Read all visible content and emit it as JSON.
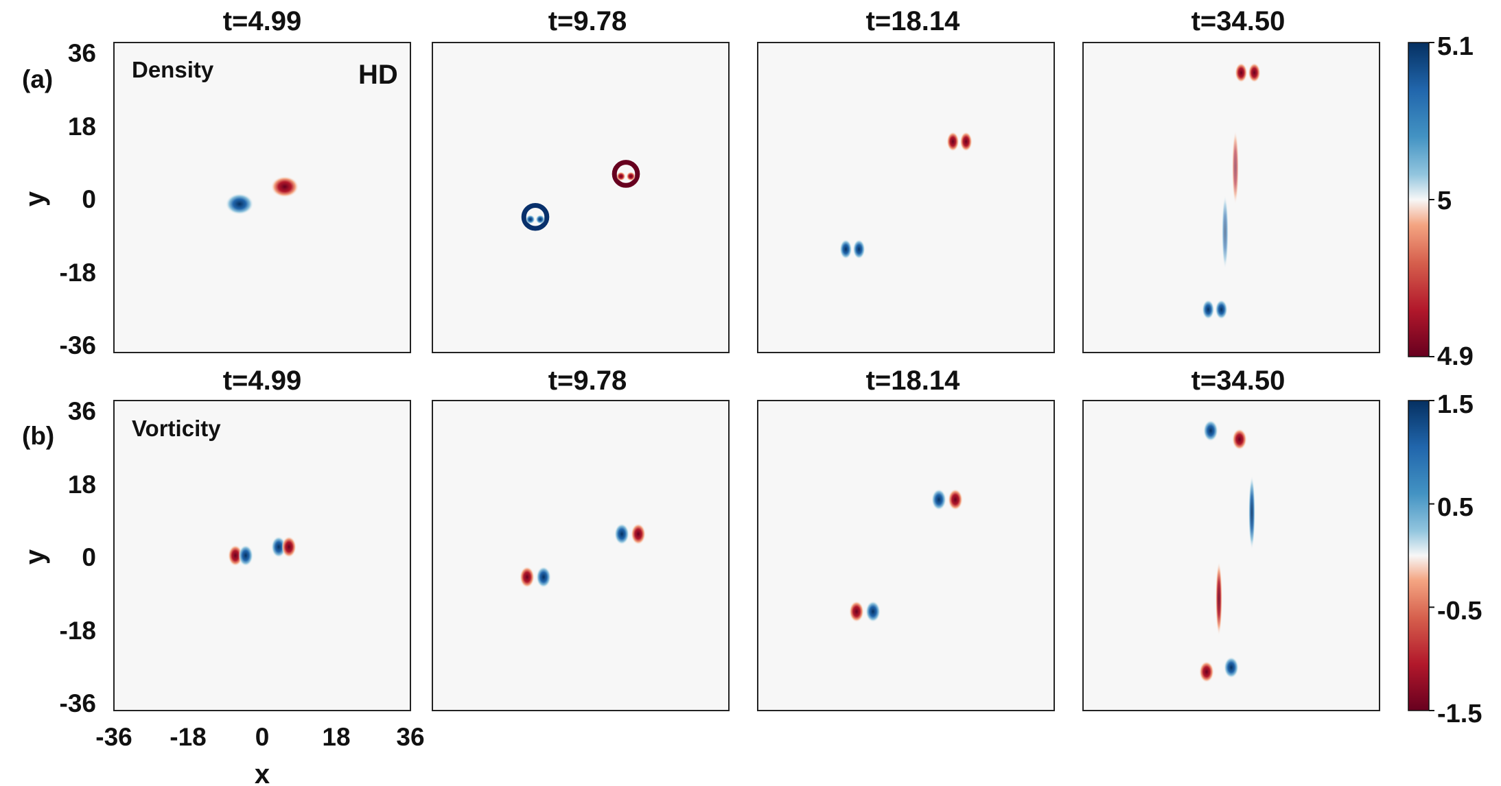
{
  "figure": {
    "panel_labels": [
      "(a)",
      "(b)"
    ],
    "xlabel": "x",
    "ylabel": "y",
    "corner_label": "HD"
  },
  "chart_data": [
    {
      "type": "heatmap",
      "row": "a",
      "field_label": "Density",
      "times": [
        "t=4.99",
        "t=9.78",
        "t=18.14",
        "t=34.50"
      ],
      "xlim": [
        -36,
        36
      ],
      "ylim": [
        -36,
        36
      ],
      "y_ticks": [
        "36",
        "18",
        "0",
        "-18",
        "-36"
      ],
      "colorbar": {
        "min": 4.9,
        "max": 5.1,
        "ticks": [
          "5.1",
          "5",
          "4.9"
        ],
        "colormap": "RdBu"
      },
      "structures": [
        [
          {
            "x": -5.5,
            "y": -1.5,
            "v": 1.0,
            "s": "cap"
          },
          {
            "x": 5.5,
            "y": 2.5,
            "v": -1.0,
            "s": "cap"
          }
        ],
        [
          {
            "x": -11,
            "y": -4.5,
            "v": 1.0,
            "s": "ring"
          },
          {
            "x": 11,
            "y": 5.5,
            "v": -1.0,
            "s": "ring"
          }
        ],
        [
          {
            "x": -13,
            "y": -12,
            "v": 1.0,
            "s": "pair"
          },
          {
            "x": 13,
            "y": 13,
            "v": -1.0,
            "s": "pair"
          }
        ],
        [
          {
            "x": -4,
            "y": -26,
            "v": 1.0,
            "s": "dipole"
          },
          {
            "x": 4,
            "y": 29,
            "v": -1.0,
            "s": "dipole"
          },
          {
            "x": -1.5,
            "y": -8,
            "v": 0.6,
            "s": "streak"
          },
          {
            "x": 1,
            "y": 7,
            "v": -0.6,
            "s": "streak"
          }
        ]
      ]
    },
    {
      "type": "heatmap",
      "row": "b",
      "field_label": "Vorticity",
      "times": [
        "t=4.99",
        "t=9.78",
        "t=18.14",
        "t=34.50"
      ],
      "xlim": [
        -36,
        36
      ],
      "ylim": [
        -36,
        36
      ],
      "x_ticks": [
        "-36",
        "-18",
        "0",
        "18",
        "36"
      ],
      "y_ticks": [
        "36",
        "18",
        "0",
        "-18",
        "-36"
      ],
      "colorbar": {
        "min": -1.5,
        "max": 1.5,
        "ticks": [
          "1.5",
          "0.5",
          "-0.5",
          "-1.5"
        ],
        "colormap": "RdBu"
      },
      "structures": [
        [
          {
            "x": -6.5,
            "y": 0,
            "v": -1.0,
            "s": "blob"
          },
          {
            "x": -4,
            "y": 0,
            "v": 1.0,
            "s": "blob"
          },
          {
            "x": 4,
            "y": 2,
            "v": 1.0,
            "s": "blob"
          },
          {
            "x": 6.5,
            "y": 2,
            "v": -1.0,
            "s": "blob"
          }
        ],
        [
          {
            "x": -13,
            "y": -5,
            "v": -1.0,
            "s": "blob"
          },
          {
            "x": -9,
            "y": -5,
            "v": 1.0,
            "s": "blob"
          },
          {
            "x": 10,
            "y": 5,
            "v": 1.0,
            "s": "blob"
          },
          {
            "x": 14,
            "y": 5,
            "v": -1.0,
            "s": "blob"
          }
        ],
        [
          {
            "x": -12,
            "y": -13,
            "v": -1.0,
            "s": "blob"
          },
          {
            "x": -8,
            "y": -13,
            "v": 1.0,
            "s": "blob"
          },
          {
            "x": 8,
            "y": 13,
            "v": 1.0,
            "s": "blob"
          },
          {
            "x": 12,
            "y": 13,
            "v": -1.0,
            "s": "blob"
          }
        ],
        [
          {
            "x": -6,
            "y": -27,
            "v": -1.0,
            "s": "blob"
          },
          {
            "x": 0,
            "y": -26,
            "v": 1.0,
            "s": "blob"
          },
          {
            "x": -5,
            "y": 29,
            "v": 1.0,
            "s": "blob"
          },
          {
            "x": 2,
            "y": 27,
            "v": -1.0,
            "s": "blob"
          },
          {
            "x": -3,
            "y": -10,
            "v": -0.9,
            "s": "streak"
          },
          {
            "x": 5,
            "y": 10,
            "v": 0.9,
            "s": "streak"
          }
        ]
      ]
    }
  ],
  "colors": {
    "background": "#f7f7f7",
    "positive": "#08306b",
    "negative": "#67001f"
  }
}
